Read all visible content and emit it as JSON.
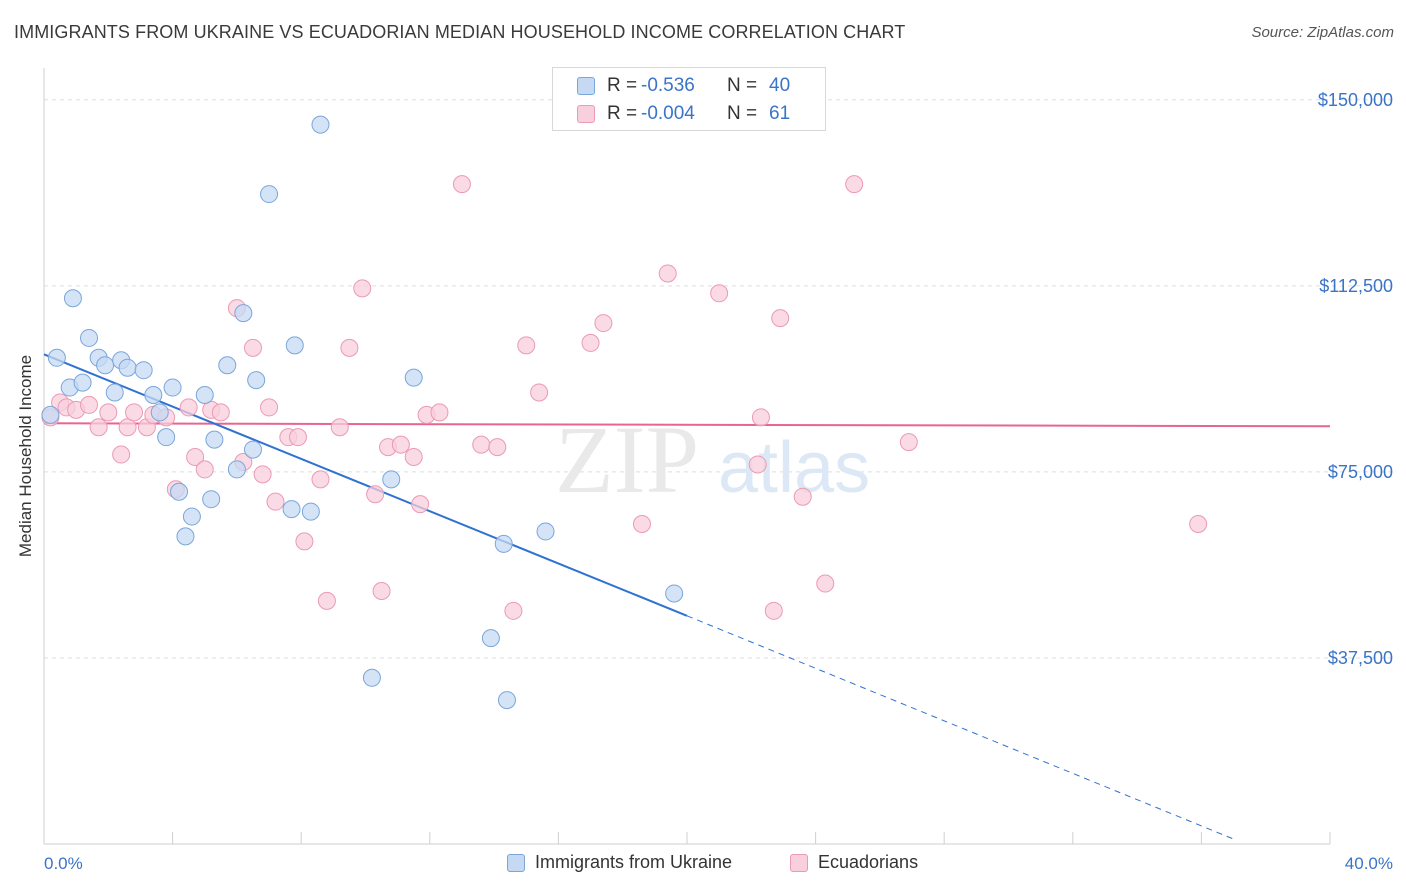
{
  "title": "IMMIGRANTS FROM UKRAINE VS ECUADORIAN MEDIAN HOUSEHOLD INCOME CORRELATION CHART",
  "source": "Source: ZipAtlas.com",
  "watermark": {
    "zip": "ZIP",
    "atlas": "atlas"
  },
  "legend_top": {
    "rows": [
      {
        "r_label": "R =",
        "r_value": "-0.536",
        "n_label": "N =",
        "n_value": "40"
      },
      {
        "r_label": "R =",
        "r_value": "-0.004",
        "n_label": "N =",
        "n_value": "61"
      }
    ]
  },
  "legend_bottom": {
    "ukraine": "Immigrants from Ukraine",
    "ecuador": "Ecuadorians"
  },
  "colors": {
    "ukraine_fill": "#c6d9f3",
    "ukraine_stroke": "#7aa6dc",
    "ukraine_line": "#2f72d2",
    "ecuador_fill": "#f8cfdc",
    "ecuador_stroke": "#eb9ab3",
    "ecuador_line": "#e8668e",
    "axis_label": "#3a74c7",
    "grid": "#dedede"
  },
  "chart_data": {
    "type": "scatter",
    "title": "IMMIGRANTS FROM UKRAINE VS ECUADORIAN MEDIAN HOUSEHOLD INCOME CORRELATION CHART",
    "xlabel": "",
    "ylabel": "Median Household Income",
    "xlim": [
      0,
      40
    ],
    "ylim": [
      0,
      155000
    ],
    "x_tick_labels": [
      "0.0%",
      "40.0%"
    ],
    "y_ticks": [
      37500,
      75000,
      112500,
      150000
    ],
    "y_tick_labels": [
      "$37,500",
      "$75,000",
      "$112,500",
      "$150,000"
    ],
    "grid": true,
    "legend_position": "top-center",
    "series": [
      {
        "name": "Immigrants from Ukraine",
        "r": -0.536,
        "n": 40,
        "trend": {
          "x0": 0,
          "y0": 98700,
          "x1": 20,
          "y1": 46000,
          "dashed_to_x": 37,
          "dashed_to_y": 1000
        },
        "points": [
          [
            0.4,
            98000
          ],
          [
            0.8,
            92000
          ],
          [
            1.2,
            93000
          ],
          [
            0.9,
            110000
          ],
          [
            1.4,
            102000
          ],
          [
            1.7,
            98000
          ],
          [
            1.9,
            96500
          ],
          [
            2.2,
            91000
          ],
          [
            2.4,
            97500
          ],
          [
            2.6,
            96000
          ],
          [
            3.1,
            95500
          ],
          [
            3.4,
            90500
          ],
          [
            3.6,
            87000
          ],
          [
            3.8,
            82000
          ],
          [
            4.0,
            92000
          ],
          [
            4.2,
            71000
          ],
          [
            4.4,
            62000
          ],
          [
            4.6,
            66000
          ],
          [
            5.0,
            90500
          ],
          [
            5.2,
            69500
          ],
          [
            5.3,
            81500
          ],
          [
            5.7,
            96500
          ],
          [
            6.0,
            75500
          ],
          [
            6.2,
            107000
          ],
          [
            6.5,
            79500
          ],
          [
            6.6,
            93500
          ],
          [
            7.0,
            131000
          ],
          [
            7.7,
            67500
          ],
          [
            7.8,
            100500
          ],
          [
            8.3,
            67000
          ],
          [
            8.6,
            145000
          ],
          [
            10.2,
            33500
          ],
          [
            10.8,
            73500
          ],
          [
            11.5,
            94000
          ],
          [
            13.9,
            41500
          ],
          [
            14.3,
            60500
          ],
          [
            14.4,
            29000
          ],
          [
            15.6,
            63000
          ],
          [
            19.6,
            50500
          ],
          [
            0.2,
            86500
          ]
        ]
      },
      {
        "name": "Ecuadorians",
        "r": -0.004,
        "n": 61,
        "trend": {
          "x0": 0,
          "y0": 84800,
          "x1": 40,
          "y1": 84200
        },
        "points": [
          [
            0.2,
            86000
          ],
          [
            0.5,
            89000
          ],
          [
            0.7,
            88000
          ],
          [
            1.0,
            87500
          ],
          [
            1.4,
            88500
          ],
          [
            1.7,
            84000
          ],
          [
            2.0,
            87000
          ],
          [
            2.4,
            78500
          ],
          [
            2.6,
            84000
          ],
          [
            2.8,
            87000
          ],
          [
            3.2,
            84000
          ],
          [
            3.4,
            86500
          ],
          [
            3.8,
            86000
          ],
          [
            4.1,
            71500
          ],
          [
            4.5,
            88000
          ],
          [
            4.7,
            78000
          ],
          [
            5.0,
            75500
          ],
          [
            5.2,
            87500
          ],
          [
            5.5,
            87000
          ],
          [
            6.0,
            108000
          ],
          [
            6.2,
            77000
          ],
          [
            6.5,
            100000
          ],
          [
            6.8,
            74500
          ],
          [
            7.0,
            88000
          ],
          [
            7.2,
            69000
          ],
          [
            7.6,
            82000
          ],
          [
            7.9,
            82000
          ],
          [
            8.1,
            61000
          ],
          [
            8.6,
            73500
          ],
          [
            8.8,
            49000
          ],
          [
            9.2,
            84000
          ],
          [
            9.5,
            100000
          ],
          [
            9.9,
            112000
          ],
          [
            10.3,
            70500
          ],
          [
            10.5,
            51000
          ],
          [
            10.7,
            80000
          ],
          [
            11.1,
            80500
          ],
          [
            11.5,
            78000
          ],
          [
            11.7,
            68500
          ],
          [
            11.9,
            86500
          ],
          [
            12.3,
            87000
          ],
          [
            13.0,
            133000
          ],
          [
            13.6,
            80500
          ],
          [
            14.1,
            80000
          ],
          [
            14.6,
            47000
          ],
          [
            15.0,
            100500
          ],
          [
            15.4,
            91000
          ],
          [
            17.0,
            101000
          ],
          [
            17.4,
            105000
          ],
          [
            18.6,
            64500
          ],
          [
            19.4,
            115000
          ],
          [
            21.0,
            111000
          ],
          [
            22.2,
            76500
          ],
          [
            22.3,
            86000
          ],
          [
            22.7,
            47000
          ],
          [
            22.9,
            106000
          ],
          [
            23.6,
            70000
          ],
          [
            24.3,
            52500
          ],
          [
            25.2,
            133000
          ],
          [
            26.9,
            81000
          ],
          [
            35.9,
            64500
          ]
        ]
      }
    ]
  }
}
